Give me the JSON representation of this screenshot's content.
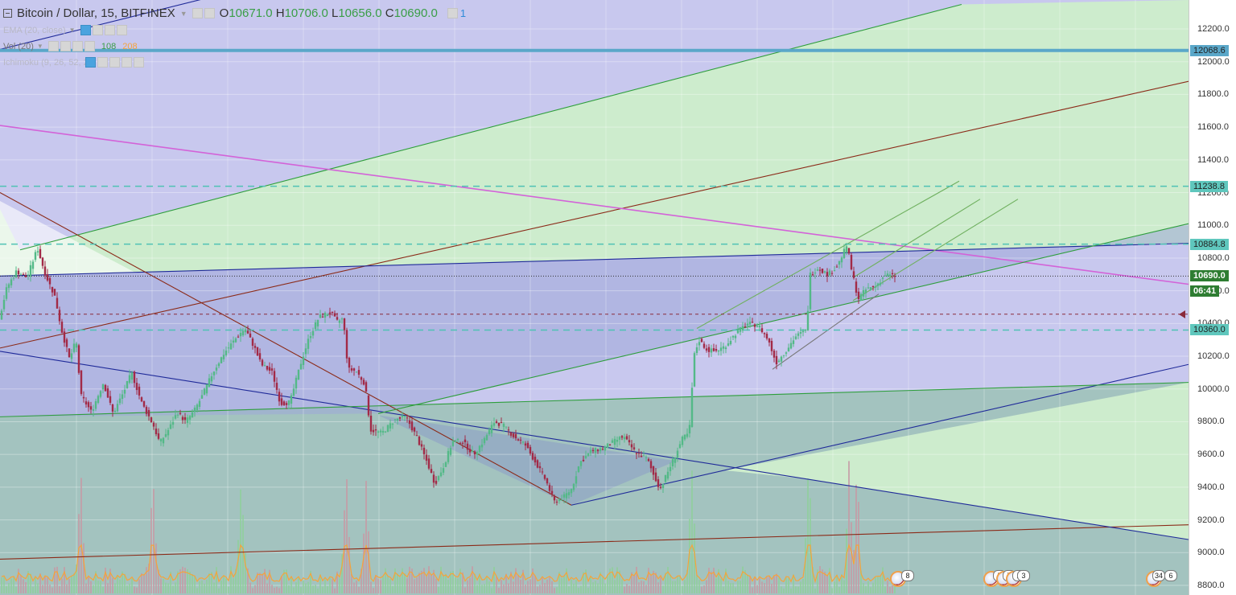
{
  "header": {
    "symbol_title": "Bitcoin / Dollar, 15, BITFINEX",
    "open_label": "O",
    "open_value": "10671.0",
    "high_label": "H",
    "high_value": "10706.0",
    "low_label": "L",
    "low_value": "10656.0",
    "close_label": "C",
    "close_value": "10690.0",
    "alerts_count": "1"
  },
  "indicators": {
    "ema": {
      "label": "EMA (20, close)"
    },
    "vol": {
      "label": "Vol (20)",
      "value1": "108",
      "value2": "208"
    },
    "ichimoku": {
      "label": "Ichimoku (9, 26, 52, 26)"
    }
  },
  "price_axis": {
    "ticks": [
      "12200.0",
      "12000.0",
      "11800.0",
      "11600.0",
      "11400.0",
      "11200.0",
      "11000.0",
      "10800.0",
      "10600.0",
      "10400.0",
      "10200.0",
      "10000.0",
      "9800.0",
      "9600.0",
      "9400.0",
      "9200.0",
      "9000.0",
      "8800.0"
    ],
    "levels": [
      {
        "label": "12068.6",
        "price": 12068.6,
        "color": "#5aa7c9"
      },
      {
        "label": "11238.8",
        "price": 11238.8,
        "color": "#5fc7bd"
      },
      {
        "label": "10884.8",
        "price": 10884.8,
        "color": "#5fc7bd"
      },
      {
        "label": "10690.0",
        "price": 10690.0,
        "color": "#2e7d32"
      },
      {
        "label": "06:41",
        "price": 10600.0,
        "color": "#2e7d32"
      },
      {
        "label": "10360.0",
        "price": 10360.0,
        "color": "#5fc7bd"
      }
    ]
  },
  "events": [
    {
      "badge": "8"
    },
    {
      "badge": "5"
    },
    {
      "badge": "7"
    },
    {
      "badge": "2"
    },
    {
      "badge": "3"
    },
    {
      "badge": "34"
    },
    {
      "badge": "6"
    }
  ],
  "colors": {
    "up_candle": "#53b987",
    "down_candle": "#a22a47",
    "volume_up": "#8fcf9b",
    "volume_down": "#c69aa5",
    "vol_ma": "#f5a33b",
    "zone_purple": "#c8c8ee",
    "zone_green": "#cdeccd",
    "zone_mid": "#9ec2b9"
  },
  "chart_data": {
    "type": "candlestick",
    "title": "Bitcoin / Dollar, 15, BITFINEX",
    "ylim": [
      8800,
      12250
    ],
    "y_ticks": [
      12200,
      12000,
      11800,
      11600,
      11400,
      11200,
      11000,
      10800,
      10600,
      10400,
      10200,
      10000,
      9800,
      9600,
      9400,
      9200,
      9000,
      8800
    ],
    "horizontal_levels": [
      12068.6,
      11238.8,
      10884.8,
      10690.0,
      10457.0,
      10360.0
    ],
    "price_path": [
      [
        0,
        10420
      ],
      [
        10,
        10620
      ],
      [
        22,
        10720
      ],
      [
        35,
        10680
      ],
      [
        48,
        10860
      ],
      [
        58,
        10700
      ],
      [
        70,
        10560
      ],
      [
        78,
        10360
      ],
      [
        88,
        10180
      ],
      [
        96,
        10300
      ],
      [
        102,
        9960
      ],
      [
        115,
        9860
      ],
      [
        130,
        10040
      ],
      [
        142,
        9850
      ],
      [
        155,
        9980
      ],
      [
        165,
        10100
      ],
      [
        178,
        9910
      ],
      [
        192,
        9780
      ],
      [
        200,
        9670
      ],
      [
        212,
        9760
      ],
      [
        222,
        9860
      ],
      [
        232,
        9800
      ],
      [
        242,
        9860
      ],
      [
        252,
        9950
      ],
      [
        266,
        10100
      ],
      [
        280,
        10220
      ],
      [
        298,
        10330
      ],
      [
        306,
        10370
      ],
      [
        318,
        10250
      ],
      [
        326,
        10150
      ],
      [
        340,
        10100
      ],
      [
        350,
        9910
      ],
      [
        362,
        9920
      ],
      [
        376,
        10170
      ],
      [
        386,
        10320
      ],
      [
        398,
        10440
      ],
      [
        412,
        10470
      ],
      [
        420,
        10410
      ],
      [
        428,
        10430
      ],
      [
        434,
        10120
      ],
      [
        444,
        10110
      ],
      [
        455,
        10030
      ],
      [
        462,
        9750
      ],
      [
        476,
        9730
      ],
      [
        492,
        9810
      ],
      [
        506,
        9830
      ],
      [
        520,
        9700
      ],
      [
        534,
        9530
      ],
      [
        542,
        9420
      ],
      [
        552,
        9520
      ],
      [
        564,
        9680
      ],
      [
        576,
        9680
      ],
      [
        590,
        9600
      ],
      [
        602,
        9680
      ],
      [
        616,
        9800
      ],
      [
        626,
        9780
      ],
      [
        640,
        9710
      ],
      [
        654,
        9660
      ],
      [
        666,
        9560
      ],
      [
        680,
        9440
      ],
      [
        690,
        9310
      ],
      [
        702,
        9340
      ],
      [
        712,
        9390
      ],
      [
        722,
        9550
      ],
      [
        736,
        9620
      ],
      [
        752,
        9640
      ],
      [
        765,
        9680
      ],
      [
        776,
        9710
      ],
      [
        790,
        9620
      ],
      [
        806,
        9570
      ],
      [
        814,
        9470
      ],
      [
        822,
        9390
      ],
      [
        832,
        9500
      ],
      [
        842,
        9610
      ],
      [
        850,
        9700
      ],
      [
        858,
        9730
      ],
      [
        864,
        10200
      ],
      [
        870,
        10300
      ],
      [
        880,
        10240
      ],
      [
        890,
        10230
      ],
      [
        902,
        10260
      ],
      [
        916,
        10340
      ],
      [
        930,
        10400
      ],
      [
        944,
        10390
      ],
      [
        956,
        10300
      ],
      [
        966,
        10160
      ],
      [
        976,
        10220
      ],
      [
        990,
        10320
      ],
      [
        1004,
        10360
      ],
      [
        1008,
        10700
      ],
      [
        1018,
        10740
      ],
      [
        1030,
        10700
      ],
      [
        1042,
        10750
      ],
      [
        1054,
        10880
      ],
      [
        1060,
        10720
      ],
      [
        1068,
        10550
      ],
      [
        1078,
        10610
      ],
      [
        1090,
        10630
      ],
      [
        1102,
        10700
      ],
      [
        1110,
        10690
      ]
    ],
    "candle_x_range": [
      0,
      1112
    ],
    "volume_peaks_x": [
      100,
      190,
      300,
      430,
      455,
      860,
      1005,
      1055,
      1065
    ],
    "trendlines_price": [
      {
        "color": "#1f2a99",
        "from": [
          0,
          12075
        ],
        "to": [
          430,
          12600
        ]
      },
      {
        "color": "#2e9e3c",
        "from": [
          25,
          10850
        ],
        "to": [
          1195,
          12350
        ]
      },
      {
        "color": "#8b2a18",
        "from": [
          0,
          10250
        ],
        "to": [
          1477,
          11880
        ]
      },
      {
        "color": "#8b2a18",
        "from": [
          0,
          8960
        ],
        "to": [
          1477,
          9170
        ]
      },
      {
        "color": "#d363d8",
        "from": [
          0,
          11610
        ],
        "to": [
          1477,
          10640
        ]
      },
      {
        "color": "#1f2a99",
        "from": [
          0,
          10690
        ],
        "to": [
          1477,
          10890
        ]
      },
      {
        "color": "#1f2a99",
        "from": [
          0,
          10230
        ],
        "to": [
          1477,
          9080
        ]
      },
      {
        "color": "#1f2a99",
        "from": [
          710,
          9290
        ],
        "to": [
          1477,
          10150
        ]
      },
      {
        "color": "#2e9e3c",
        "from": [
          0,
          9830
        ],
        "to": [
          1477,
          10040
        ]
      },
      {
        "color": "#8b2a18",
        "from": [
          0,
          11200
        ],
        "to": [
          710,
          9290
        ]
      },
      {
        "color": "#2e9e3c",
        "from": [
          470,
          9850
        ],
        "to": [
          1477,
          11010
        ]
      },
      {
        "color": "#6fb05f",
        "from": [
          866,
          10370
        ],
        "to": [
          1192,
          11270
        ]
      },
      {
        "color": "#6fb05f",
        "from": [
          1060,
          10680
        ],
        "to": [
          1218,
          11160
        ]
      },
      {
        "color": "#6fb05f",
        "from": [
          1060,
          10540
        ],
        "to": [
          1265,
          11160
        ]
      },
      {
        "color": "#777777",
        "from": [
          960,
          10120
        ],
        "to": [
          1092,
          10580
        ]
      }
    ]
  }
}
